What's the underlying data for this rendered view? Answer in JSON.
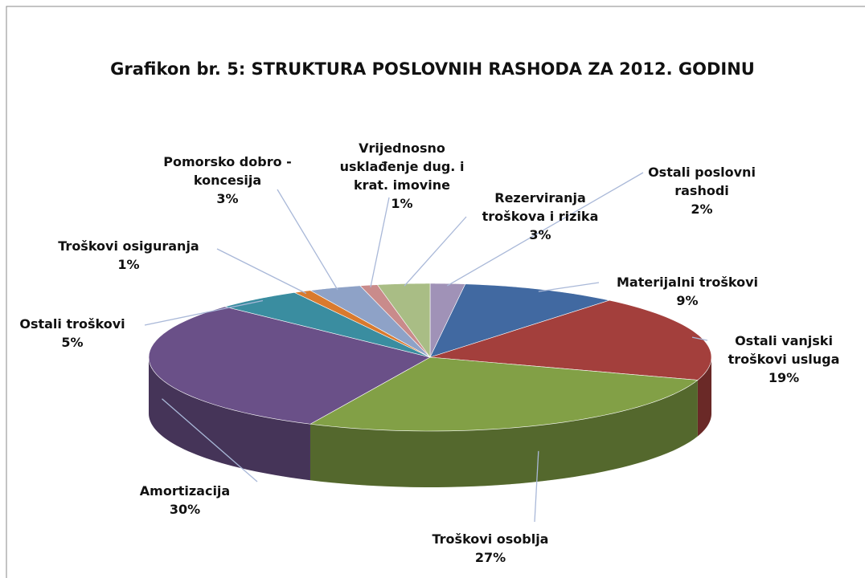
{
  "chart_data": {
    "type": "pie",
    "title": "Grafikon br. 5: STRUKTURA POSLOVNIH RASHODA ZA 2012. GODINU",
    "categories": [
      "Ostali poslovni rashodi",
      "Materijalni troškovi",
      "Ostali vanjski troškovi usluga",
      "Troškovi osoblja",
      "Amortizacija",
      "Ostali troškovi",
      "Troškovi osiguranja",
      "Pomorsko dobro - koncesija",
      "Vrijednosno usklađenje dug. i krat. imovine",
      "Rezerviranja troškova i rizika"
    ],
    "values": [
      2,
      9,
      19,
      27,
      30,
      5,
      1,
      3,
      1,
      3
    ],
    "value_labels": [
      "2%",
      "9%",
      "19%",
      "27%",
      "30%",
      "5%",
      "1%",
      "3%",
      "1%",
      "3%"
    ],
    "colors": [
      "#a092b7",
      "#4169a1",
      "#a33f3c",
      "#82a046",
      "#6a5088",
      "#3a8da0",
      "#d97a2e",
      "#8ea2c7",
      "#c98b8b",
      "#a9bd85"
    ]
  }
}
